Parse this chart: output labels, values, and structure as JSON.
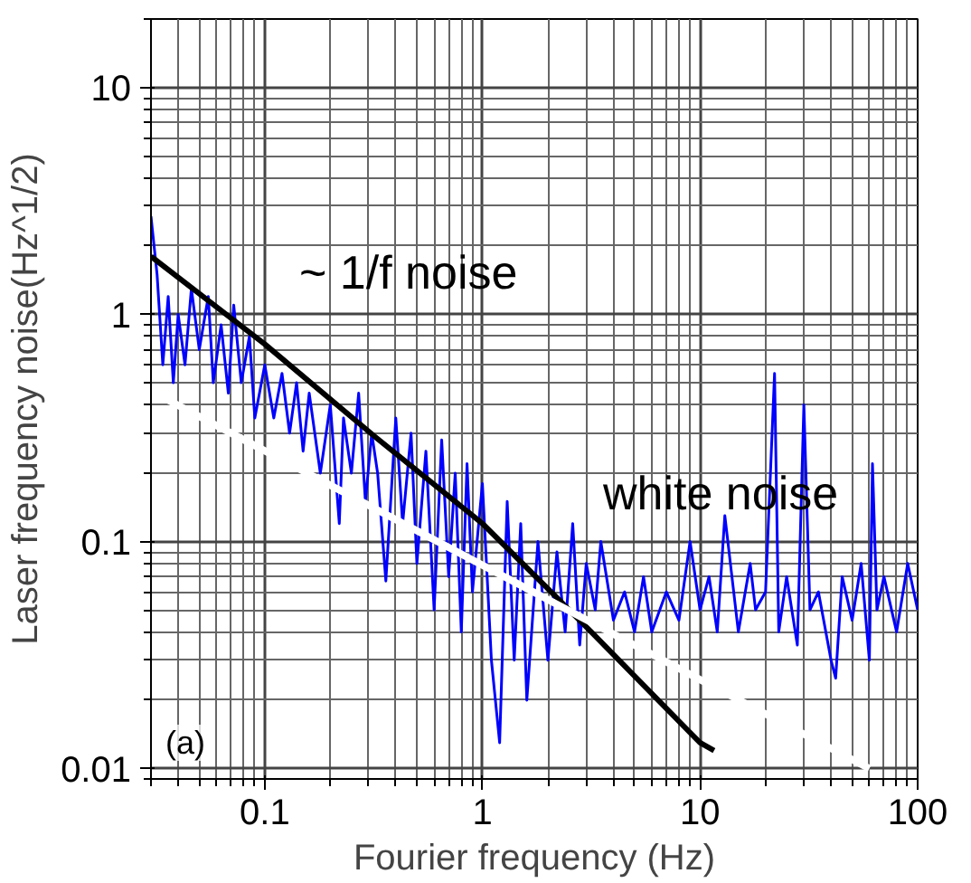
{
  "chart_data": {
    "type": "line",
    "xlabel": "Fourier frequency (Hz)",
    "ylabel": "Laser frequency noise(Hz^1/2)",
    "log": "xy",
    "grid": true,
    "xlim": [
      0.03,
      100
    ],
    "ylim": [
      0.009,
      20
    ],
    "xticks": [
      0.1,
      1,
      10,
      100
    ],
    "yticks": [
      0.01,
      0.1,
      1,
      10
    ],
    "series": [
      {
        "color": "#0000ff",
        "x": [
          0.03,
          0.032,
          0.034,
          0.036,
          0.038,
          0.04,
          0.043,
          0.046,
          0.05,
          0.055,
          0.058,
          0.063,
          0.068,
          0.072,
          0.078,
          0.085,
          0.09,
          0.1,
          0.11,
          0.12,
          0.13,
          0.14,
          0.15,
          0.16,
          0.18,
          0.2,
          0.22,
          0.23,
          0.25,
          0.27,
          0.29,
          0.31,
          0.33,
          0.36,
          0.4,
          0.43,
          0.47,
          0.5,
          0.55,
          0.6,
          0.65,
          0.7,
          0.75,
          0.8,
          0.85,
          0.9,
          1.0,
          1.1,
          1.2,
          1.3,
          1.4,
          1.5,
          1.6,
          1.8,
          2.0,
          2.2,
          2.4,
          2.6,
          2.8,
          3.0,
          3.3,
          3.5,
          4.0,
          4.5,
          5.0,
          5.5,
          6.0,
          7.0,
          8.0,
          9.0,
          10.0,
          11.0,
          12.0,
          13.0,
          15.0,
          17.0,
          18.0,
          20.0,
          22.0,
          23.0,
          25.0,
          28.0,
          30.0,
          32.0,
          35.0,
          40.0,
          42.0,
          45.0,
          50.0,
          55.0,
          60.0,
          62.0,
          65.0,
          70.0,
          80.0,
          90.0,
          100.0
        ],
        "values": [
          2.7,
          1.5,
          0.6,
          1.2,
          0.5,
          1.0,
          0.6,
          1.3,
          0.7,
          1.2,
          0.5,
          0.9,
          0.45,
          1.1,
          0.5,
          0.8,
          0.35,
          0.6,
          0.35,
          0.55,
          0.3,
          0.5,
          0.25,
          0.45,
          0.2,
          0.4,
          0.12,
          0.35,
          0.2,
          0.45,
          0.15,
          0.3,
          0.2,
          0.067,
          0.35,
          0.12,
          0.3,
          0.08,
          0.25,
          0.05,
          0.28,
          0.07,
          0.2,
          0.04,
          0.22,
          0.06,
          0.18,
          0.03,
          0.013,
          0.15,
          0.03,
          0.12,
          0.02,
          0.1,
          0.03,
          0.09,
          0.04,
          0.12,
          0.035,
          0.08,
          0.05,
          0.1,
          0.045,
          0.06,
          0.04,
          0.07,
          0.04,
          0.06,
          0.045,
          0.1,
          0.05,
          0.07,
          0.04,
          0.13,
          0.04,
          0.08,
          0.05,
          0.06,
          0.55,
          0.04,
          0.07,
          0.035,
          0.4,
          0.05,
          0.06,
          0.03,
          0.025,
          0.07,
          0.045,
          0.08,
          0.03,
          0.22,
          0.05,
          0.07,
          0.04,
          0.08,
          0.05
        ]
      },
      {
        "color": "#000000",
        "x": [
          0.03,
          0.1,
          0.32,
          1,
          3.16,
          10,
          11.6
        ],
        "values": [
          1.8,
          0.74,
          0.29,
          0.12,
          0.04,
          0.013,
          0.012
        ]
      },
      {
        "color": "#ffffff",
        "x": [
          0.03,
          60
        ],
        "values": [
          0.46,
          0.01
        ]
      }
    ],
    "annotations": [
      "~ 1/f noise",
      "white noise",
      "(a)"
    ]
  }
}
